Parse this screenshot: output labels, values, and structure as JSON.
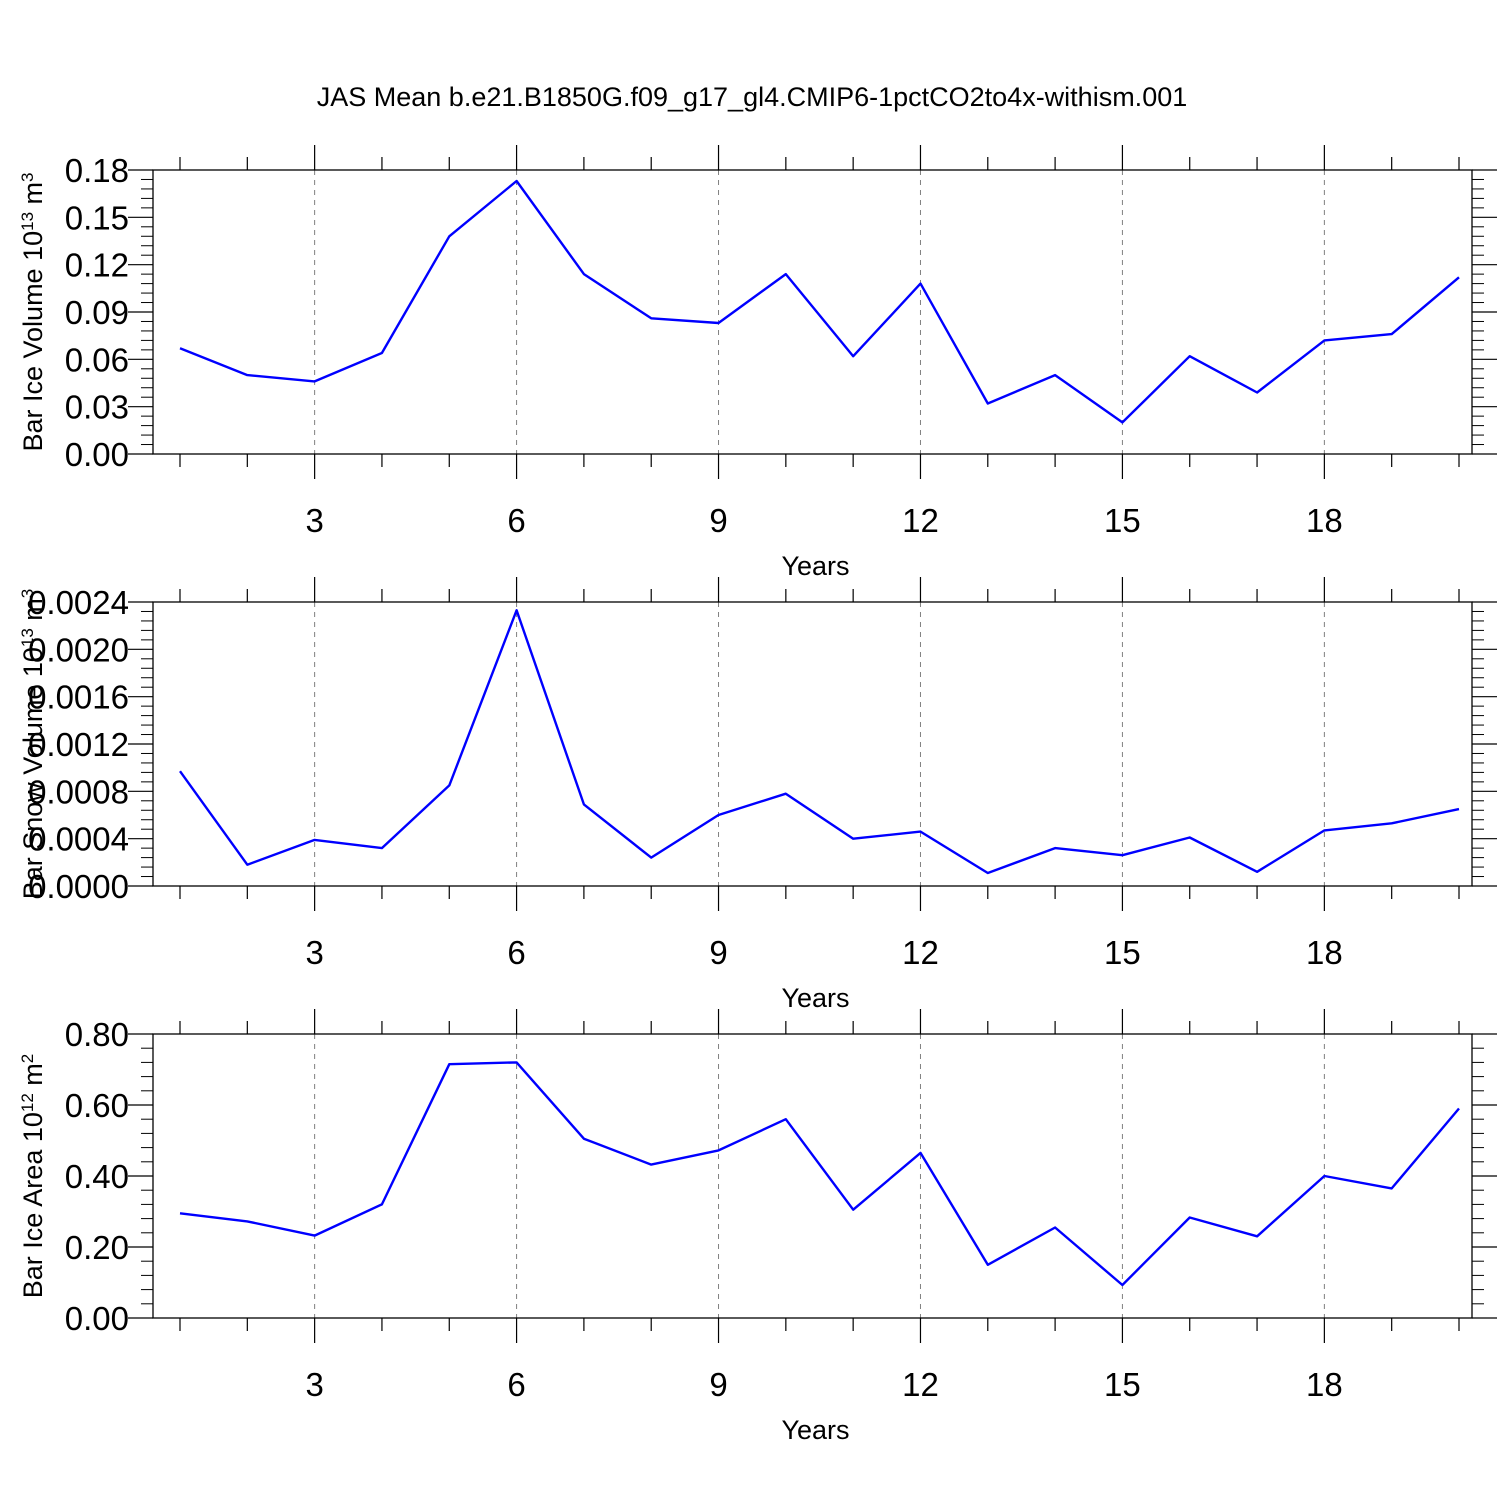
{
  "title": "JAS Mean b.e21.B1850G.f09_g17_gl4.CMIP6-1pctCO2to4x-withism.001",
  "colors": {
    "line": "#0000ff",
    "axes": "#000000",
    "grid": "#808080",
    "background": "#ffffff"
  },
  "chart_data": [
    {
      "type": "line",
      "xlabel": "Years",
      "ylabel": {
        "text": "Bar Ice Volume 10",
        "exponent": "13",
        "unit": " m",
        "unit_exponent": "3"
      },
      "xlim": [
        1,
        20
      ],
      "ylim": [
        0,
        0.18
      ],
      "x_ticks": [
        3,
        6,
        9,
        12,
        15,
        18
      ],
      "x_tick_labels": [
        "3",
        "6",
        "9",
        "12",
        "15",
        "18"
      ],
      "y_ticks": [
        0,
        0.03,
        0.06,
        0.09,
        0.12,
        0.15,
        0.18
      ],
      "y_tick_labels": [
        "0.00",
        "0.03",
        "0.06",
        "0.09",
        "0.12",
        "0.15",
        "0.18"
      ],
      "grid": "vertical dashed at labeled x ticks",
      "x": [
        1,
        2,
        3,
        4,
        5,
        6,
        7,
        8,
        9,
        10,
        11,
        12,
        13,
        14,
        15,
        16,
        17,
        18,
        19,
        20
      ],
      "y": [
        0.067,
        0.05,
        0.046,
        0.064,
        0.138,
        0.173,
        0.114,
        0.086,
        0.083,
        0.114,
        0.062,
        0.108,
        0.032,
        0.05,
        0.02,
        0.062,
        0.039,
        0.072,
        0.076,
        0.112
      ]
    },
    {
      "type": "line",
      "xlabel": "Years",
      "ylabel": {
        "text": "Bar Snow Volume 10",
        "exponent": "13",
        "unit": " m",
        "unit_exponent": "3"
      },
      "xlim": [
        1,
        20
      ],
      "ylim": [
        0,
        0.0024
      ],
      "x_ticks": [
        3,
        6,
        9,
        12,
        15,
        18
      ],
      "x_tick_labels": [
        "3",
        "6",
        "9",
        "12",
        "15",
        "18"
      ],
      "y_ticks": [
        0,
        0.0004,
        0.0008,
        0.0012,
        0.0016,
        0.002,
        0.0024
      ],
      "y_tick_labels": [
        "0.0000",
        "0.0004",
        "0.0008",
        "0.0012",
        "0.0016",
        "0.0020",
        "0.0024"
      ],
      "grid": "vertical dashed at labeled x ticks",
      "x": [
        1,
        2,
        3,
        4,
        5,
        6,
        7,
        8,
        9,
        10,
        11,
        12,
        13,
        14,
        15,
        16,
        17,
        18,
        19,
        20
      ],
      "y": [
        0.00097,
        0.00018,
        0.00039,
        0.00032,
        0.00085,
        0.00233,
        0.00069,
        0.00024,
        0.0006,
        0.00078,
        0.0004,
        0.00046,
        0.00011,
        0.00032,
        0.00026,
        0.00041,
        0.00012,
        0.00047,
        0.00053,
        0.00065
      ]
    },
    {
      "type": "line",
      "xlabel": "Years",
      "ylabel": {
        "text": "Bar Ice Area 10",
        "exponent": "12",
        "unit": " m",
        "unit_exponent": "2"
      },
      "xlim": [
        1,
        20
      ],
      "ylim": [
        0,
        0.8
      ],
      "x_ticks": [
        3,
        6,
        9,
        12,
        15,
        18
      ],
      "x_tick_labels": [
        "3",
        "6",
        "9",
        "12",
        "15",
        "18"
      ],
      "y_ticks": [
        0,
        0.2,
        0.4,
        0.6,
        0.8
      ],
      "y_tick_labels": [
        "0.00",
        "0.20",
        "0.40",
        "0.60",
        "0.80"
      ],
      "grid": "vertical dashed at labeled x ticks",
      "x": [
        1,
        2,
        3,
        4,
        5,
        6,
        7,
        8,
        9,
        10,
        11,
        12,
        13,
        14,
        15,
        16,
        17,
        18,
        19,
        20
      ],
      "y": [
        0.295,
        0.272,
        0.232,
        0.32,
        0.715,
        0.72,
        0.505,
        0.432,
        0.472,
        0.56,
        0.305,
        0.465,
        0.15,
        0.255,
        0.093,
        0.283,
        0.23,
        0.4,
        0.365,
        0.59
      ]
    }
  ]
}
